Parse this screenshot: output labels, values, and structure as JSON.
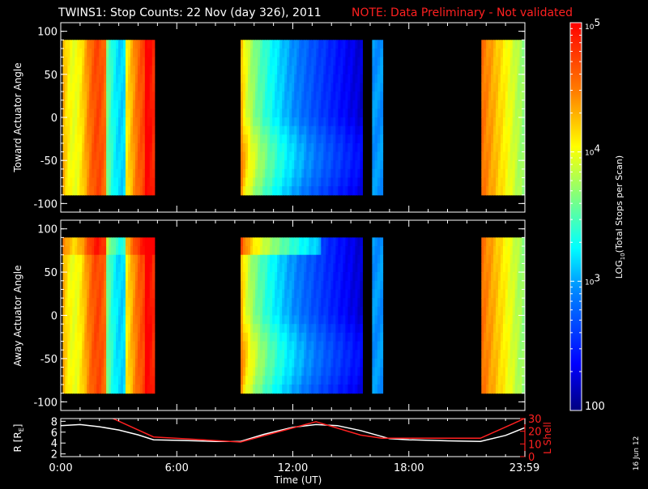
{
  "title": {
    "main": "TWINS1: Stop Counts: 22 Nov (day 326), 2011",
    "note": "NOTE: Data Preliminary - Not validated",
    "note_color": "#ff2020"
  },
  "stamp": "16 Jun 12",
  "chart_data": [
    {
      "type": "heatmap",
      "name": "toward",
      "ylabel": "Toward Actuator Angle",
      "ylim": [
        -110,
        110
      ],
      "yticks": [
        100,
        50,
        0,
        -50,
        -100
      ],
      "data_range": [
        -90,
        90
      ],
      "x_hours_range": [
        0,
        24
      ],
      "data_intervals_hours": [
        [
          0.1,
          4.85
        ],
        [
          9.3,
          15.6
        ],
        [
          16.1,
          16.65
        ],
        [
          21.75,
          23.98
        ]
      ]
    },
    {
      "type": "heatmap",
      "name": "away",
      "ylabel": "Away Actuator Angle",
      "ylim": [
        -110,
        110
      ],
      "yticks": [
        100,
        50,
        0,
        -50,
        -100
      ],
      "data_range": [
        -90,
        90
      ],
      "x_hours_range": [
        0,
        24
      ],
      "data_intervals_hours": [
        [
          0.1,
          4.85
        ],
        [
          9.3,
          15.6
        ],
        [
          16.1,
          16.65
        ],
        [
          21.75,
          23.98
        ]
      ]
    },
    {
      "type": "line",
      "name": "orbit",
      "ylabel": "R [RE]",
      "ylabel_sub": "E",
      "ylim": [
        1.5,
        8.5
      ],
      "yticks": [
        8,
        6,
        4,
        2
      ],
      "y2label": "L Shell",
      "y2lim": [
        0,
        30
      ],
      "y2ticks": [
        30,
        20,
        10,
        0
      ],
      "y2_color": "#ff2020",
      "xlabel": "Time (UT)",
      "xticks": [
        "0:00",
        "6:00",
        "12:00",
        "18:00",
        "23:59"
      ],
      "xtick_hours": [
        0,
        6,
        12,
        18,
        23.98
      ],
      "series": [
        {
          "axis": "left",
          "color": "#ffffff",
          "x": [
            0,
            1,
            2,
            3,
            4,
            4.8,
            6,
            8,
            9.3,
            10.5,
            12,
            13.2,
            14.3,
            15.5,
            17,
            18,
            20,
            21.7,
            23,
            23.98
          ],
          "y": [
            7.2,
            7.4,
            7.0,
            6.4,
            5.5,
            4.6,
            4.5,
            4.3,
            4.3,
            5.6,
            6.9,
            7.4,
            7.2,
            6.3,
            4.8,
            4.6,
            4.4,
            4.3,
            5.4,
            6.8
          ]
        },
        {
          "axis": "right",
          "color": "#ff2020",
          "x": [
            2.7,
            4.8,
            9.3,
            13.2,
            15.5,
            16.6,
            21.7,
            23.98
          ],
          "y": [
            30,
            15.5,
            11.5,
            27.5,
            17,
            14.5,
            14.5,
            30
          ]
        }
      ]
    },
    {
      "type": "colorbar",
      "ylabel": "LOG10(Total Stops per Scan)",
      "ylabel_parts": [
        "LOG",
        "10",
        "(Total Stops per Scan)"
      ],
      "tick_labels": [
        {
          "base": "10",
          "exp": "5",
          "value": 100000
        },
        {
          "base": "10",
          "exp": "4",
          "value": 10000
        },
        {
          "base": "10",
          "exp": "3",
          "value": 1000
        },
        {
          "base": "100",
          "exp": "",
          "value": 100
        }
      ],
      "range": [
        100,
        100000
      ],
      "scale": "log"
    }
  ]
}
